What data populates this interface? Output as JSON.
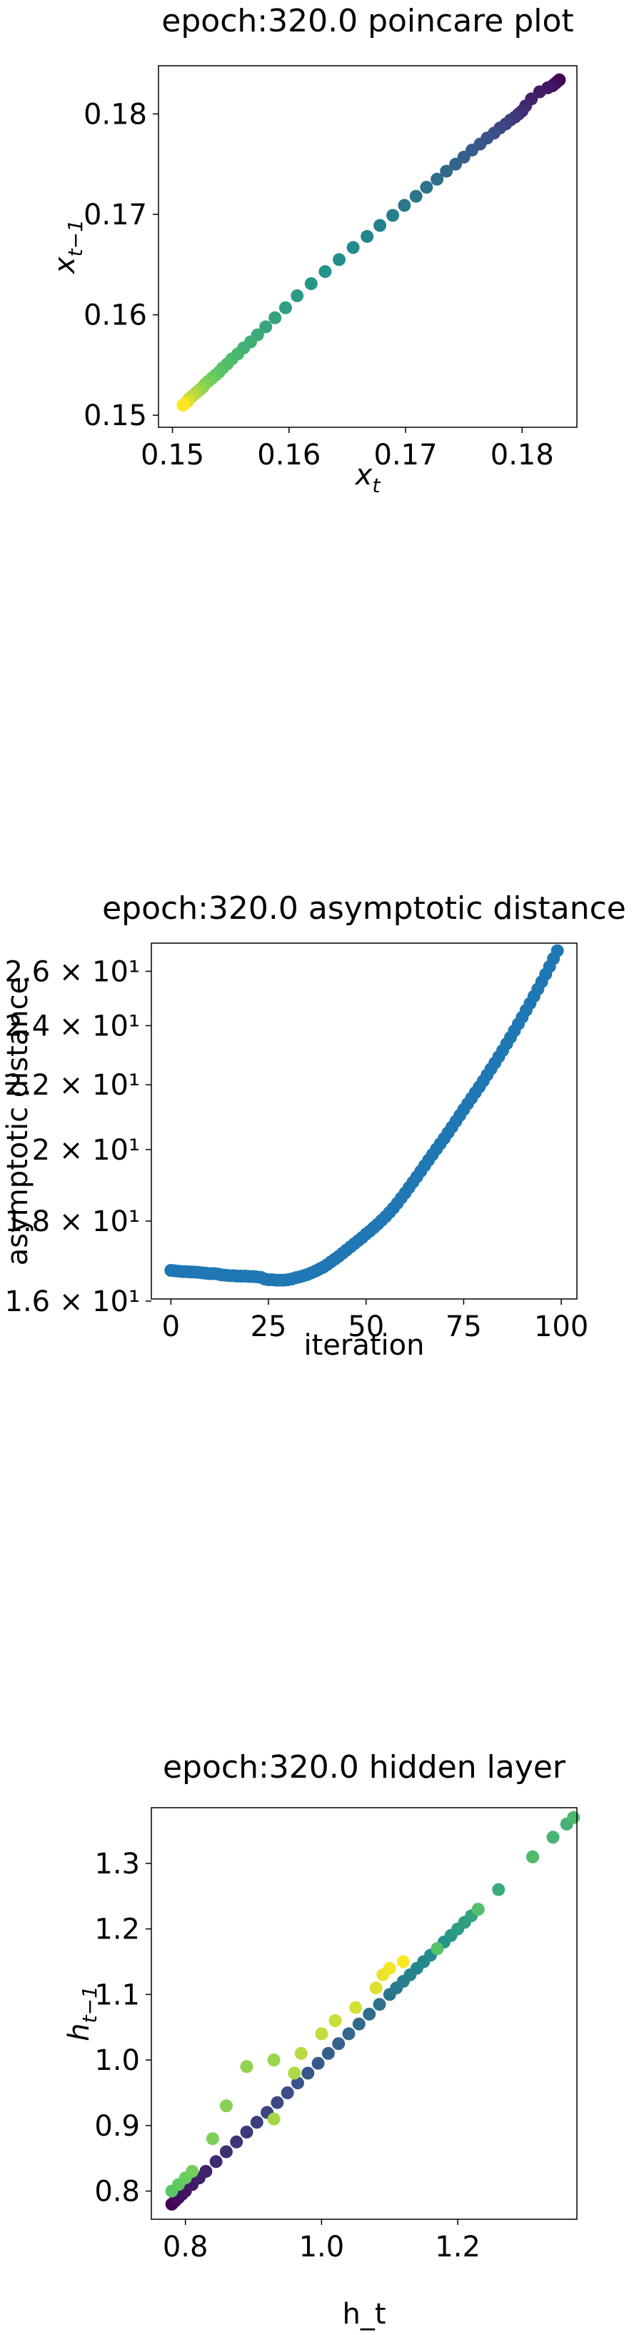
{
  "chart_data": [
    {
      "type": "scatter",
      "title": "epoch:320.0 poincare plot",
      "xlabel": "x_t",
      "ylabel": "x_{t-1}",
      "xlim": [
        0.1488,
        0.1847
      ],
      "ylim": [
        0.1488,
        0.1848
      ],
      "xticks": [
        0.15,
        0.16,
        0.17,
        0.18
      ],
      "xtick_labels": [
        "0.15",
        "0.16",
        "0.17",
        "0.18"
      ],
      "yticks": [
        0.15,
        0.16,
        0.17,
        0.18
      ],
      "ytick_labels": [
        "0.15",
        "0.16",
        "0.17",
        "0.18"
      ],
      "colormap": [
        "#440154",
        "#3b528b",
        "#21918c",
        "#5ec962",
        "#fde725"
      ],
      "x": [
        0.1832,
        0.183,
        0.1828,
        0.1826,
        0.1822,
        0.1815,
        0.1808,
        0.1803,
        0.18,
        0.1797,
        0.1794,
        0.179,
        0.1786,
        0.1781,
        0.1776,
        0.177,
        0.1764,
        0.1757,
        0.175,
        0.1743,
        0.1735,
        0.1727,
        0.1718,
        0.1709,
        0.1699,
        0.1689,
        0.1678,
        0.1667,
        0.1655,
        0.1643,
        0.1631,
        0.1619,
        0.1607,
        0.1597,
        0.1588,
        0.158,
        0.1573,
        0.1567,
        0.1561,
        0.1556,
        0.1551,
        0.1547,
        0.1543,
        0.154,
        0.1537,
        0.1534,
        0.1531,
        0.1528,
        0.1526,
        0.1524,
        0.1522,
        0.152,
        0.1518,
        0.1516,
        0.1514,
        0.1513,
        0.1512,
        0.1511,
        0.151,
        0.1509
      ],
      "y": [
        0.1834,
        0.1832,
        0.183,
        0.1828,
        0.1826,
        0.1822,
        0.1815,
        0.1808,
        0.1803,
        0.18,
        0.1797,
        0.1794,
        0.179,
        0.1786,
        0.1781,
        0.1776,
        0.177,
        0.1764,
        0.1757,
        0.175,
        0.1743,
        0.1735,
        0.1727,
        0.1718,
        0.1709,
        0.1699,
        0.1689,
        0.1678,
        0.1667,
        0.1655,
        0.1643,
        0.1631,
        0.1619,
        0.1607,
        0.1597,
        0.1588,
        0.158,
        0.1573,
        0.1567,
        0.1561,
        0.1556,
        0.1551,
        0.1547,
        0.1543,
        0.154,
        0.1537,
        0.1534,
        0.1531,
        0.1528,
        0.1526,
        0.1524,
        0.1522,
        0.152,
        0.1518,
        0.1516,
        0.1514,
        0.1513,
        0.1512,
        0.1511,
        0.151
      ]
    },
    {
      "type": "scatter",
      "title": "epoch:320.0 asymptotic distance",
      "xlabel": "iteration",
      "ylabel": "asymptotic distance",
      "yscale": "log",
      "xlim": [
        -5,
        104
      ],
      "ylim": [
        16.05,
        27.1
      ],
      "xticks": [
        0,
        25,
        50,
        75,
        100
      ],
      "xtick_labels": [
        "0",
        "25",
        "50",
        "75",
        "100"
      ],
      "yticks": [
        16,
        18,
        20,
        22,
        24,
        26
      ],
      "ytick_labels": [
        "1.6 × 10¹",
        "1.8 × 10¹",
        "2 × 10¹",
        "2.2 × 10¹",
        "2.4 × 10¹",
        "2.6 × 10¹"
      ],
      "color": "#1f77b4",
      "x": [
        0,
        1,
        2,
        3,
        4,
        5,
        6,
        7,
        8,
        9,
        10,
        11,
        12,
        13,
        14,
        15,
        16,
        17,
        18,
        19,
        20,
        21,
        22,
        23,
        24,
        25,
        26,
        27,
        28,
        29,
        30,
        31,
        32,
        33,
        34,
        35,
        36,
        37,
        38,
        39,
        40,
        41,
        42,
        43,
        44,
        45,
        46,
        47,
        48,
        49,
        50,
        51,
        52,
        53,
        54,
        55,
        56,
        57,
        58,
        59,
        60,
        61,
        62,
        63,
        64,
        65,
        66,
        67,
        68,
        69,
        70,
        71,
        72,
        73,
        74,
        75,
        76,
        77,
        78,
        79,
        80,
        81,
        82,
        83,
        84,
        85,
        86,
        87,
        88,
        89,
        90,
        91,
        92,
        93,
        94,
        95,
        96,
        97,
        98,
        99
      ],
      "y": [
        16.74,
        16.73,
        16.72,
        16.71,
        16.71,
        16.7,
        16.7,
        16.69,
        16.68,
        16.67,
        16.66,
        16.66,
        16.65,
        16.63,
        16.62,
        16.61,
        16.61,
        16.6,
        16.6,
        16.6,
        16.59,
        16.59,
        16.58,
        16.57,
        16.53,
        16.51,
        16.51,
        16.5,
        16.5,
        16.5,
        16.51,
        16.53,
        16.56,
        16.58,
        16.61,
        16.64,
        16.68,
        16.72,
        16.77,
        16.82,
        16.88,
        16.95,
        17.02,
        17.09,
        17.17,
        17.25,
        17.33,
        17.41,
        17.49,
        17.57,
        17.66,
        17.74,
        17.83,
        17.92,
        18.02,
        18.12,
        18.23,
        18.35,
        18.48,
        18.62,
        18.76,
        18.91,
        19.06,
        19.21,
        19.37,
        19.53,
        19.69,
        19.85,
        20.01,
        20.17,
        20.33,
        20.5,
        20.67,
        20.85,
        21.03,
        21.21,
        21.39,
        21.57,
        21.75,
        21.93,
        22.12,
        22.32,
        22.52,
        22.72,
        22.93,
        23.14,
        23.37,
        23.59,
        23.82,
        24.06,
        24.3,
        24.55,
        24.8,
        25.06,
        25.33,
        25.6,
        25.89,
        26.18,
        26.49,
        26.8
      ]
    },
    {
      "type": "scatter",
      "title": "epoch:320.0 hidden layer",
      "xlabel": "h_t",
      "ylabel": "h_{t-1}",
      "xlim": [
        0.75,
        1.375
      ],
      "ylim": [
        0.757,
        1.385
      ],
      "xticks": [
        0.8,
        1.0,
        1.2
      ],
      "xtick_labels": [
        "0.8",
        "1.0",
        "1.2"
      ],
      "yticks": [
        0.8,
        0.9,
        1.0,
        1.1,
        1.2,
        1.3
      ],
      "ytick_labels": [
        "0.8",
        "0.9",
        "1.0",
        "1.1",
        "1.2",
        "1.3"
      ],
      "colormap": [
        "#440154",
        "#3b528b",
        "#21918c",
        "#5ec962",
        "#fde725"
      ],
      "x": [
        0.78,
        0.785,
        0.79,
        0.795,
        0.8,
        0.81,
        0.82,
        0.83,
        0.845,
        0.86,
        0.875,
        0.89,
        0.905,
        0.92,
        0.935,
        0.95,
        0.965,
        0.98,
        0.995,
        1.01,
        1.025,
        1.04,
        1.055,
        1.07,
        1.085,
        1.1,
        1.11,
        1.12,
        1.13,
        1.14,
        1.15,
        1.16,
        1.17,
        1.18,
        1.19,
        1.2,
        1.21,
        1.22,
        1.23,
        1.26,
        1.31,
        1.36,
        1.34,
        1.37,
        1.31,
        1.23,
        1.17,
        0.78,
        0.79,
        0.8,
        0.81,
        0.84,
        0.86,
        0.89,
        0.93,
        0.93,
        0.96,
        0.97,
        1.0,
        1.02,
        1.05,
        1.08,
        1.09,
        1.1,
        1.12
      ],
      "y": [
        0.78,
        0.785,
        0.79,
        0.795,
        0.8,
        0.81,
        0.82,
        0.83,
        0.845,
        0.86,
        0.875,
        0.89,
        0.905,
        0.92,
        0.935,
        0.95,
        0.965,
        0.98,
        0.995,
        1.01,
        1.025,
        1.04,
        1.055,
        1.07,
        1.085,
        1.1,
        1.11,
        1.12,
        1.13,
        1.14,
        1.15,
        1.16,
        1.17,
        1.18,
        1.19,
        1.2,
        1.21,
        1.22,
        1.23,
        1.26,
        1.31,
        1.36,
        1.34,
        1.37,
        1.31,
        1.23,
        1.17,
        0.8,
        0.81,
        0.82,
        0.83,
        0.88,
        0.93,
        0.99,
        1.0,
        0.91,
        0.98,
        1.01,
        1.04,
        1.06,
        1.08,
        1.11,
        1.13,
        1.14,
        1.15
      ]
    }
  ]
}
